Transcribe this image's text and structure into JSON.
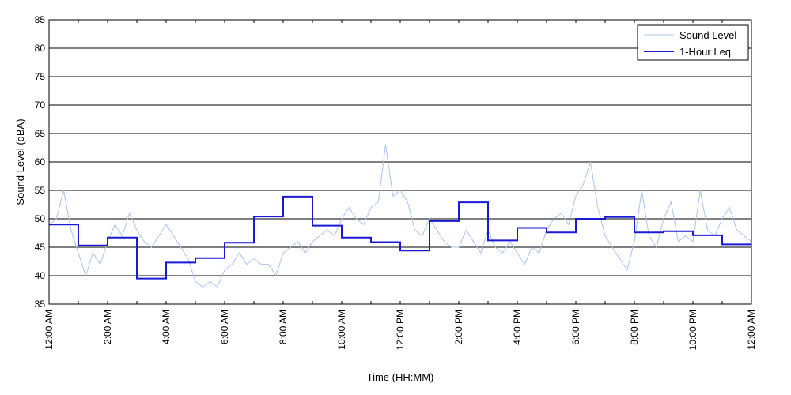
{
  "chart_data": {
    "type": "line",
    "title": "",
    "xlabel": "Time (HH:MM)",
    "ylabel": "Sound Level (dBA)",
    "ylim": [
      35,
      85
    ],
    "y_ticks": [
      35,
      40,
      45,
      50,
      55,
      60,
      65,
      70,
      75,
      80,
      85
    ],
    "x_range_hours": [
      0,
      24
    ],
    "x_ticks": [
      {
        "hour": 0,
        "label": "12:00 AM"
      },
      {
        "hour": 2,
        "label": "2:00 AM"
      },
      {
        "hour": 4,
        "label": "4:00 AM"
      },
      {
        "hour": 6,
        "label": "6:00 AM"
      },
      {
        "hour": 8,
        "label": "8:00 AM"
      },
      {
        "hour": 10,
        "label": "10:00 AM"
      },
      {
        "hour": 12,
        "label": "12:00 PM"
      },
      {
        "hour": 14,
        "label": "2:00 PM"
      },
      {
        "hour": 16,
        "label": "4:00 PM"
      },
      {
        "hour": 18,
        "label": "6:00 PM"
      },
      {
        "hour": 20,
        "label": "8:00 PM"
      },
      {
        "hour": 22,
        "label": "10:00 PM"
      },
      {
        "hour": 24,
        "label": "12:00 AM"
      }
    ],
    "grid": "horizontal",
    "legend_position": "top-right",
    "series": [
      {
        "name": "Sound Level",
        "color": "#a9c4f0",
        "style": "thin-line",
        "x_hours": [
          0,
          0.25,
          0.5,
          0.75,
          1,
          1.25,
          1.5,
          1.75,
          2,
          2.25,
          2.5,
          2.75,
          3,
          3.25,
          3.5,
          3.75,
          4,
          4.25,
          4.5,
          4.75,
          5,
          5.25,
          5.5,
          5.75,
          6,
          6.25,
          6.5,
          6.75,
          7,
          7.25,
          7.5,
          7.75,
          8,
          8.25,
          8.5,
          8.75,
          9,
          9.25,
          9.5,
          9.75,
          10,
          10.25,
          10.5,
          10.75,
          11,
          11.25,
          11.5,
          11.75,
          12,
          12.25,
          12.5,
          12.75,
          13,
          13.25,
          13.5,
          13.75,
          14,
          14.25,
          14.5,
          14.75,
          15,
          15.25,
          15.5,
          15.75,
          16,
          16.25,
          16.5,
          16.75,
          17,
          17.25,
          17.5,
          17.75,
          18,
          18.25,
          18.5,
          18.75,
          19,
          19.25,
          19.5,
          19.75,
          20,
          20.25,
          20.5,
          20.75,
          21,
          21.25,
          21.5,
          21.75,
          22,
          22.25,
          22.5,
          22.75,
          23,
          23.25,
          23.5,
          23.75,
          24
        ],
        "values": [
          49,
          50,
          55,
          48,
          44,
          40,
          44,
          42,
          46,
          49,
          47,
          51,
          48,
          46,
          45,
          47,
          49,
          47,
          45,
          43,
          39,
          38,
          39,
          38,
          41,
          42,
          44,
          42,
          43,
          42,
          42,
          40,
          44,
          45,
          46,
          44,
          46,
          47,
          48,
          47,
          50,
          52,
          50,
          49,
          52,
          53,
          63,
          54,
          55,
          53,
          48,
          47,
          50,
          48,
          46,
          45,
          45,
          48,
          46,
          44,
          48,
          45,
          44,
          46,
          44,
          42,
          45,
          44,
          48,
          50,
          51,
          49,
          54,
          56,
          60,
          52,
          47,
          45,
          43,
          41,
          46,
          55,
          47,
          45,
          50,
          53,
          46,
          47,
          46,
          55,
          48,
          47,
          50,
          52,
          48,
          47,
          46
        ]
      },
      {
        "name": "1-Hour Leq",
        "color": "#1a1ad6",
        "style": "step",
        "hourly_values": [
          49.0,
          45.3,
          46.7,
          39.5,
          42.3,
          43.1,
          45.8,
          50.4,
          53.9,
          48.8,
          46.7,
          45.9,
          44.4,
          49.6,
          52.9,
          46.2,
          48.4,
          47.6,
          50.0,
          50.3,
          47.6,
          47.8,
          47.1,
          45.5
        ]
      }
    ]
  }
}
